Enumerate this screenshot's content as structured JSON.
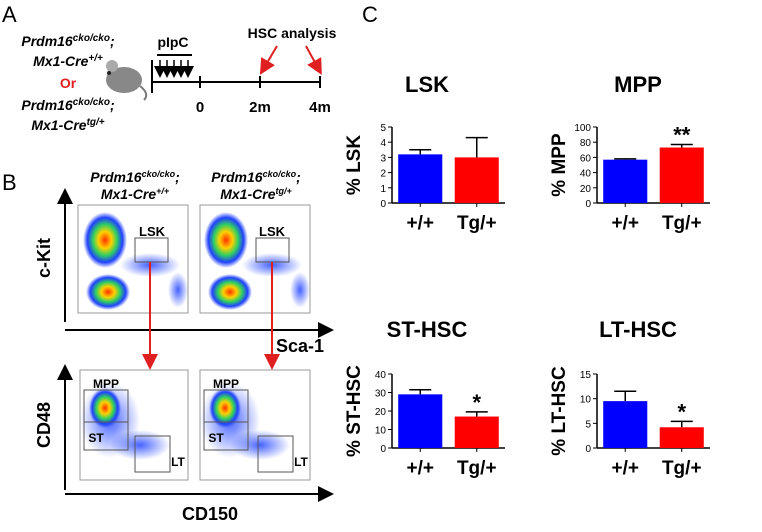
{
  "panel_labels": [
    "A",
    "B",
    "C"
  ],
  "panel_a": {
    "genotype_1": {
      "line1": [
        "Prdm16",
        "cko/cko",
        ";"
      ],
      "line2": [
        "Mx1-Cre",
        "+/+"
      ]
    },
    "or": "Or",
    "genotype_2": {
      "line1": [
        "Prdm16",
        "cko/cko",
        ";"
      ],
      "line2": [
        "Mx1-Cre",
        "tg/+"
      ]
    },
    "treatment": "pIpC",
    "analysis": "HSC analysis",
    "timepoints": [
      "0",
      "2m",
      "4m"
    ]
  },
  "panel_b": {
    "genotype_1": {
      "line1": [
        "Prdm16",
        "cko/cko",
        ";"
      ],
      "line2": [
        "Mx1-Cre",
        "+/+"
      ]
    },
    "genotype_2": {
      "line1": [
        "Prdm16",
        "cko/cko",
        ";"
      ],
      "line2": [
        "Mx1-Cre",
        "tg/+"
      ]
    },
    "top_y_axis": "c-Kit",
    "top_x_axis": "Sca-1",
    "bottom_y_axis": "CD48",
    "bottom_x_axis": "CD150",
    "top_gate": "LSK",
    "bottom_gates": [
      "MPP",
      "ST",
      "LT"
    ]
  },
  "chart_data": [
    {
      "type": "bar",
      "title": "LSK",
      "y_label": "% LSK",
      "categories": [
        "+/+",
        "Tg/+"
      ],
      "values": [
        3.2,
        3.0
      ],
      "errors": [
        0.3,
        1.3
      ],
      "colors": [
        "#0000ff",
        "#ff0000"
      ],
      "ylim": [
        0,
        5
      ],
      "yticks": [
        0,
        1,
        2,
        3,
        4,
        5
      ]
    },
    {
      "type": "bar",
      "title": "MPP",
      "y_label": "% MPP",
      "categories": [
        "+/+",
        "Tg/+"
      ],
      "values": [
        57,
        73
      ],
      "errors": [
        1,
        4
      ],
      "colors": [
        "#0000ff",
        "#ff0000"
      ],
      "ylim": [
        0,
        100
      ],
      "yticks": [
        0,
        20,
        40,
        60,
        80,
        100
      ],
      "annotation": "**"
    },
    {
      "type": "bar",
      "title": "ST-HSC",
      "y_label": "% ST-HSC",
      "categories": [
        "+/+",
        "Tg/+"
      ],
      "values": [
        29,
        17
      ],
      "errors": [
        2.5,
        2.5
      ],
      "colors": [
        "#0000ff",
        "#ff0000"
      ],
      "ylim": [
        0,
        40
      ],
      "yticks": [
        0,
        10,
        20,
        30,
        40
      ],
      "annotation": "*"
    },
    {
      "type": "bar",
      "title": "LT-HSC",
      "y_label": "% LT-HSC",
      "categories": [
        "+/+",
        "Tg/+"
      ],
      "values": [
        9.5,
        4.2
      ],
      "errors": [
        2,
        1.2
      ],
      "colors": [
        "#0000ff",
        "#ff0000"
      ],
      "ylim": [
        0,
        15
      ],
      "yticks": [
        0,
        5,
        10,
        15
      ],
      "annotation": "*"
    }
  ]
}
